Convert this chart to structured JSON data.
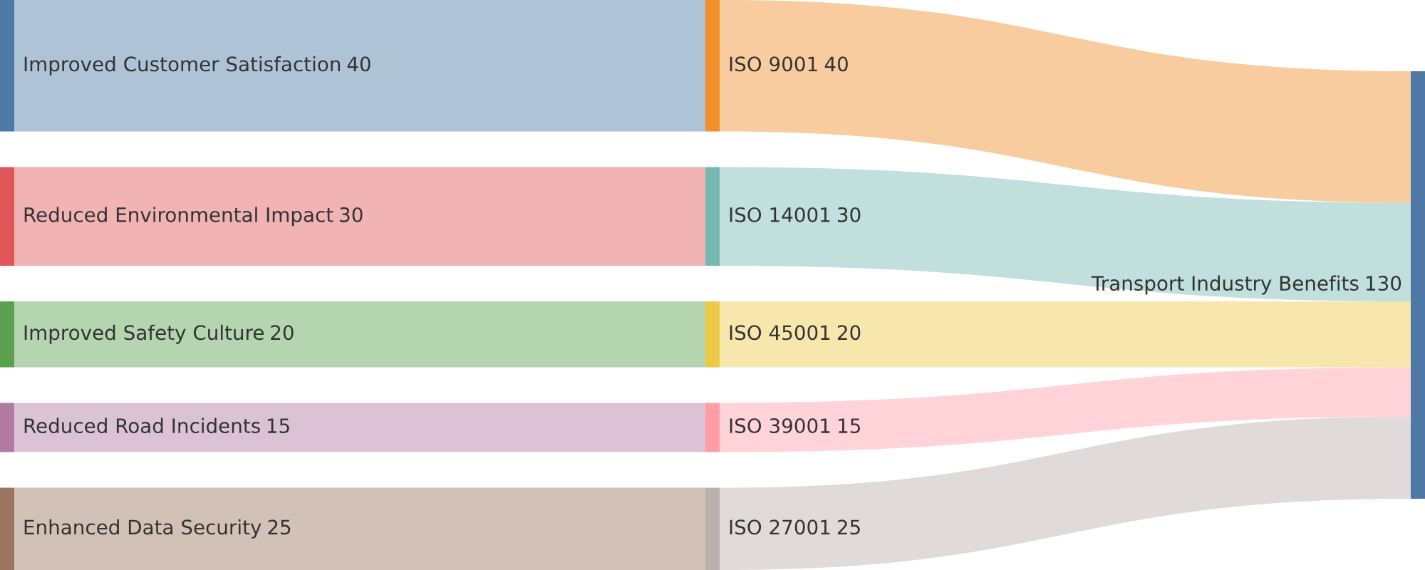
{
  "chart_data": {
    "type": "other",
    "categories": [
      "Improved Customer Satisfaction",
      "Reduced Environmental Impact",
      "Improved Safety Culture",
      "Reduced Road Incidents",
      "Enhanced Data Security",
      "ISO 9001",
      "ISO 14001",
      "ISO 45001",
      "ISO 39001",
      "ISO 27001",
      "Transport Industry Benefits"
    ],
    "data_labels": true,
    "series": [
      {
        "values": [
          40,
          30,
          20,
          15,
          25,
          null,
          null,
          null,
          null,
          null,
          null
        ],
        "colors": [
          "#4e79a7",
          "#e15759",
          "#59a14f",
          "#b07aa1",
          "#9c755f",
          null,
          null,
          null,
          null,
          null,
          null
        ]
      },
      {
        "values": [
          null,
          null,
          null,
          null,
          null,
          40,
          30,
          20,
          15,
          25,
          null
        ],
        "colors": [
          null,
          null,
          null,
          null,
          null,
          "#f28e2b",
          "#76b7b2",
          "#edc948",
          "#ff9da7",
          "#bab0ac",
          null
        ]
      },
      {
        "values": [
          null,
          null,
          null,
          null,
          null,
          null,
          null,
          null,
          null,
          null,
          130
        ],
        "color": "#4e79a7"
      }
    ]
  }
}
